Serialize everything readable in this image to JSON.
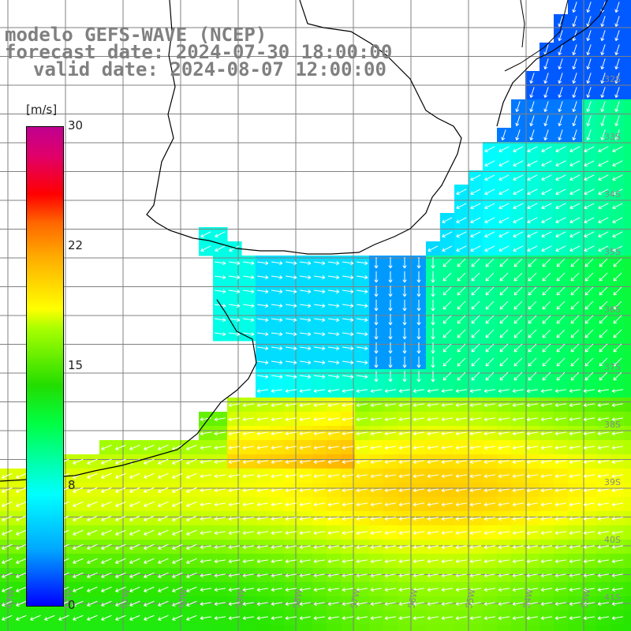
{
  "title": {
    "line1": "modelo GEFS-WAVE (NCEP)",
    "line2": "forecast date: 2024-07-30 18:00:00",
    "line3": "valid date: 2024-08-07 12:00:00"
  },
  "colorbar": {
    "units": "[m/s]",
    "min": 0,
    "max": 30,
    "labels": [
      "30",
      "22",
      "15",
      "8",
      "0"
    ],
    "label_values": [
      30,
      22,
      15,
      8,
      0
    ]
  },
  "lat_labels": [
    "32S",
    "33S",
    "34S",
    "35S",
    "36S",
    "37S",
    "38S",
    "39S",
    "40S",
    "41S"
  ],
  "lon_labels": [
    "63W",
    "62W",
    "61W",
    "60W",
    "59W",
    "58W",
    "57W",
    "56W",
    "55W",
    "54W",
    "53W",
    "52W"
  ],
  "colors": {
    "grid": "#808080",
    "coast": "#000000",
    "arrows": "#ffffff",
    "title": "#808080"
  }
}
